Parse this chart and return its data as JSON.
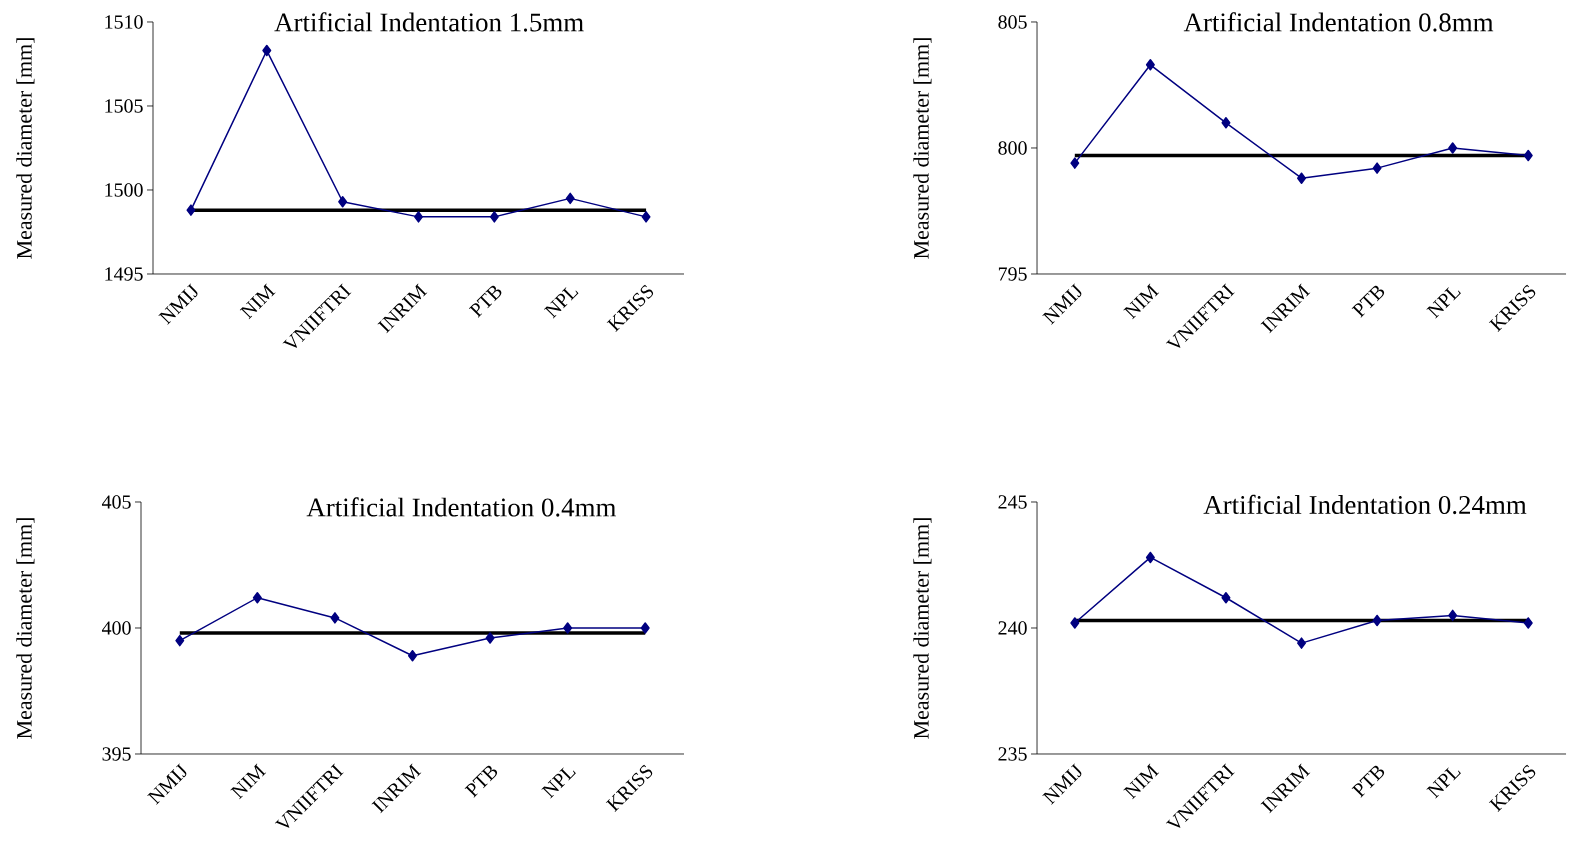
{
  "chart_data": [
    {
      "type": "line",
      "title": "Artificial Indentation 1.5mm",
      "ylabel": "Measured diameter [mm]",
      "categories": [
        "NMIJ",
        "NIM",
        "VNIIFTRI",
        "INRIM",
        "PTB",
        "NPL",
        "KRISS"
      ],
      "series": [
        {
          "color": "#000080",
          "values": [
            1498.8,
            1508.3,
            1499.3,
            1498.4,
            1498.4,
            1499.5,
            1498.4
          ]
        }
      ],
      "ylim": [
        1495,
        1510
      ],
      "yticks": [
        1495,
        1500,
        1505,
        1510
      ],
      "marker": "diamond",
      "grid": false,
      "ref_lines": [
        {
          "axis": "y",
          "value": 1498.8,
          "color": "#000000"
        }
      ]
    },
    {
      "type": "line",
      "title": "Artificial Indentation 0.8mm",
      "ylabel": "Measured diameter [mm]",
      "categories": [
        "NMIJ",
        "NIM",
        "VNIIFTRI",
        "INRIM",
        "PTB",
        "NPL",
        "KRISS"
      ],
      "series": [
        {
          "color": "#000080",
          "values": [
            799.4,
            803.3,
            801.0,
            798.8,
            799.2,
            800.0,
            799.7
          ]
        }
      ],
      "ylim": [
        795,
        805
      ],
      "yticks": [
        795,
        800,
        805
      ],
      "marker": "diamond",
      "grid": false,
      "ref_lines": [
        {
          "axis": "y",
          "value": 799.7,
          "color": "#000000"
        }
      ]
    },
    {
      "type": "line",
      "title": "Artificial Indentation 0.4mm",
      "ylabel": "Measured diameter [mm]",
      "categories": [
        "NMIJ",
        "NIM",
        "VNIIFTRI",
        "INRIM",
        "PTB",
        "NPL",
        "KRISS"
      ],
      "series": [
        {
          "color": "#000080",
          "values": [
            399.5,
            401.2,
            400.4,
            398.9,
            399.6,
            400.0,
            400.0
          ]
        }
      ],
      "ylim": [
        395,
        405
      ],
      "yticks": [
        395,
        400,
        405
      ],
      "marker": "diamond",
      "grid": false,
      "ref_lines": [
        {
          "axis": "y",
          "value": 399.8,
          "color": "#000000"
        }
      ]
    },
    {
      "type": "line",
      "title": "Artificial Indentation 0.24mm",
      "ylabel": "Measured diameter [mm]",
      "categories": [
        "NMIJ",
        "NIM",
        "VNIIFTRI",
        "INRIM",
        "PTB",
        "NPL",
        "KRISS"
      ],
      "series": [
        {
          "color": "#000080",
          "values": [
            240.2,
            242.8,
            241.2,
            239.4,
            240.3,
            240.5,
            240.2
          ]
        }
      ],
      "ylim": [
        235,
        245
      ],
      "yticks": [
        235,
        240,
        245
      ],
      "marker": "diamond",
      "grid": false,
      "ref_lines": [
        {
          "axis": "y",
          "value": 240.3,
          "color": "#000000"
        }
      ]
    }
  ]
}
